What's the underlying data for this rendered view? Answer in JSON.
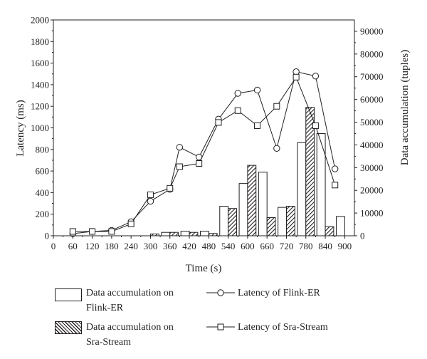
{
  "chart_data": {
    "type": "bar",
    "xlabel": "Time (s)",
    "ylabel_left": "Latency (ms)",
    "ylabel_right": "Data accumulation (tuples)",
    "x_range": [
      0,
      930
    ],
    "x_ticks": [
      0,
      60,
      120,
      180,
      240,
      300,
      360,
      420,
      480,
      540,
      600,
      660,
      720,
      780,
      840,
      900
    ],
    "y_left_range": [
      0,
      2000
    ],
    "y_left_ticks": [
      0,
      200,
      400,
      600,
      800,
      1000,
      1200,
      1400,
      1600,
      1800,
      2000
    ],
    "y_right_range": [
      0,
      95000
    ],
    "y_right_ticks": [
      0,
      10000,
      20000,
      30000,
      40000,
      50000,
      60000,
      70000,
      80000,
      90000
    ],
    "grid": false,
    "bar_categories": [
      60,
      120,
      180,
      240,
      300,
      360,
      420,
      480,
      540,
      600,
      660,
      720,
      780,
      840,
      900
    ],
    "bar_series": [
      {
        "name": "Data accumulation on Flink-ER",
        "style": "open",
        "axis": "right",
        "values": [
          0,
          0,
          0,
          0,
          0,
          1500,
          2000,
          2000,
          13000,
          23000,
          28000,
          12500,
          41000,
          45000,
          8500
        ]
      },
      {
        "name": "Data accumulation on Sra-Stream",
        "style": "hatched",
        "axis": "right",
        "values": [
          0,
          0,
          0,
          0,
          800,
          1500,
          1500,
          1000,
          12000,
          31000,
          8000,
          13000,
          56500,
          4000,
          0
        ]
      }
    ],
    "line_series": [
      {
        "name": "Latency of Flink-ER",
        "marker": "circle",
        "axis": "left",
        "x": [
          60,
          120,
          180,
          240,
          300,
          360,
          390,
          450,
          510,
          570,
          630,
          690,
          750,
          810,
          870
        ],
        "y": [
          20,
          40,
          50,
          130,
          320,
          430,
          820,
          730,
          1080,
          1320,
          1350,
          810,
          1520,
          1480,
          620
        ]
      },
      {
        "name": "Latency of Sra-Stream",
        "marker": "square",
        "axis": "left",
        "x": [
          60,
          120,
          180,
          240,
          300,
          360,
          390,
          450,
          510,
          570,
          630,
          690,
          750,
          810,
          870
        ],
        "y": [
          40,
          40,
          40,
          110,
          380,
          440,
          640,
          670,
          1050,
          1160,
          1020,
          1200,
          1470,
          1020,
          470
        ]
      }
    ],
    "legend": {
      "placement": "bottom",
      "items": [
        {
          "ref": "bar_series.0",
          "line1": "Data accumulation on",
          "line2": "Flink-ER"
        },
        {
          "ref": "line_series.0",
          "line1": "Latency of Flink-ER"
        },
        {
          "ref": "bar_series.1",
          "line1": "Data accumulation on",
          "line2": "Sra-Stream"
        },
        {
          "ref": "line_series.1",
          "line1": "Latency of Sra-Stream"
        }
      ]
    }
  }
}
